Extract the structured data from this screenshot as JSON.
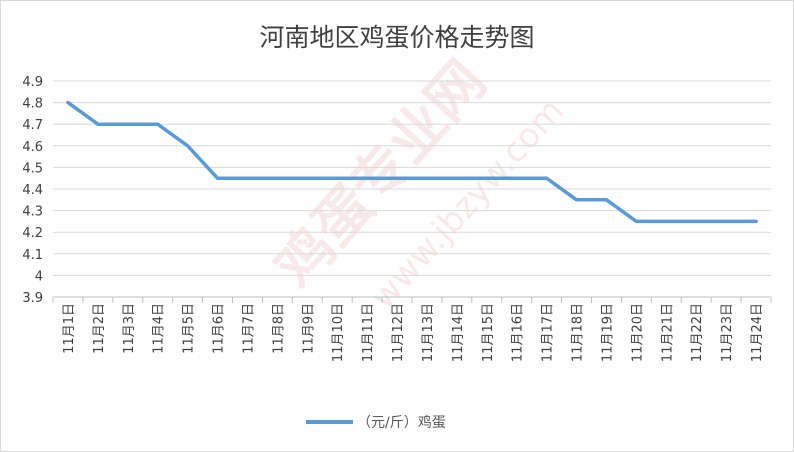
{
  "watermark": {
    "brand": "鸡蛋专业网",
    "url": "www.jbzyw.com"
  },
  "chart_data": {
    "type": "line",
    "title": "河南地区鸡蛋价格走势图",
    "xlabel": "",
    "ylabel": "",
    "categories": [
      "11月1日",
      "11月2日",
      "11月3日",
      "11月4日",
      "11月5日",
      "11月6日",
      "11月7日",
      "11月8日",
      "11月9日",
      "11月10日",
      "11月11日",
      "11月12日",
      "11月13日",
      "11月14日",
      "11月15日",
      "11月16日",
      "11月17日",
      "11月18日",
      "11月19日",
      "11月20日",
      "11月21日",
      "11月22日",
      "11月23日",
      "11月24日"
    ],
    "series": [
      {
        "name": "（元/斤）鸡蛋",
        "color": "#5b9bd5",
        "values": [
          4.8,
          4.7,
          4.7,
          4.7,
          4.6,
          4.45,
          4.45,
          4.45,
          4.45,
          4.45,
          4.45,
          4.45,
          4.45,
          4.45,
          4.45,
          4.45,
          4.45,
          4.35,
          4.35,
          4.25,
          4.25,
          4.25,
          4.25,
          4.25
        ]
      }
    ],
    "ylim": [
      3.9,
      4.9
    ],
    "yticks": [
      "3.9",
      "4",
      "4.1",
      "4.2",
      "4.3",
      "4.4",
      "4.5",
      "4.6",
      "4.7",
      "4.8",
      "4.9"
    ],
    "ytick_values": [
      3.9,
      4.0,
      4.1,
      4.2,
      4.3,
      4.4,
      4.5,
      4.6,
      4.7,
      4.8,
      4.9
    ],
    "grid": true,
    "legend": "bottom"
  }
}
